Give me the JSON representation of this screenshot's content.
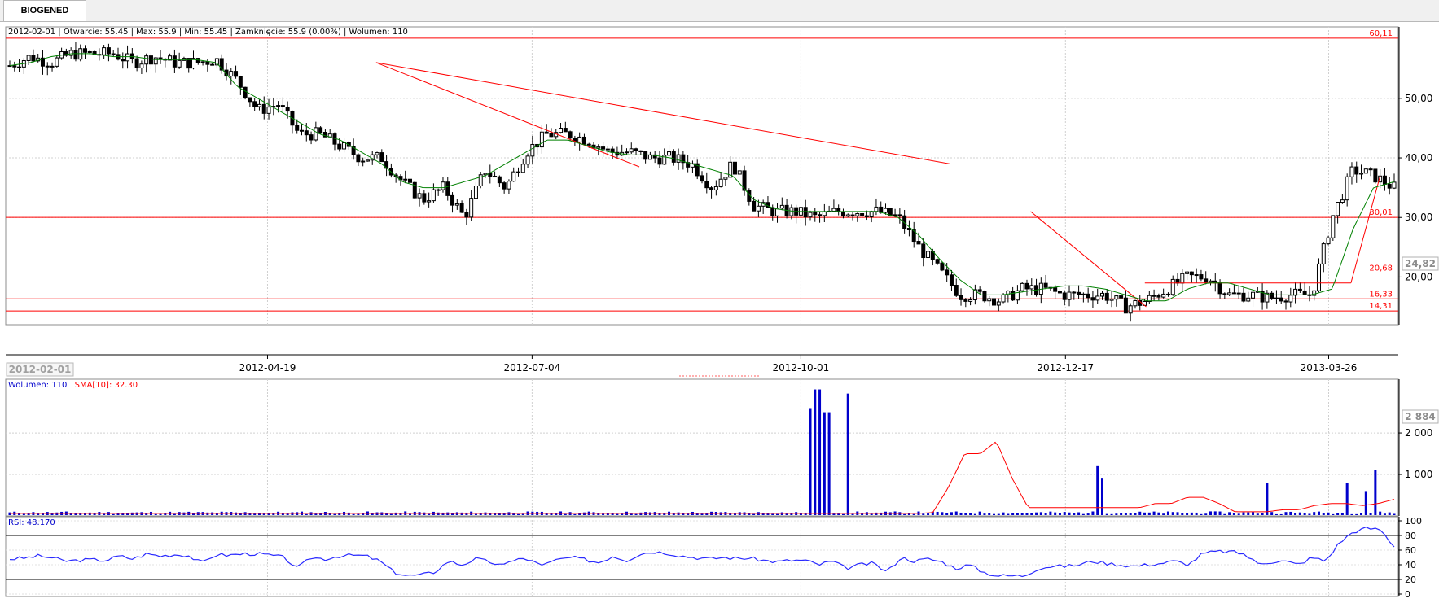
{
  "tab": {
    "label": "BIOGENED"
  },
  "price_info": "2012-02-01 | Otwarcie: 55.45 | Max: 55.9 | Min: 55.45 | Zamknięcie: 55.9 (0.00%)  | Wolumen: 110",
  "current_date": "2012-02-01",
  "volume_info": {
    "volume": "Wolumen: 110",
    "sma": "SMA[10]: 32.30"
  },
  "rsi_info": "RSI: 48.170",
  "colors": {
    "up": "#ffffff",
    "down": "#000000",
    "line": "#ff0000",
    "sma": "#008000",
    "volume": "#0000cc",
    "rsi": "#2a2aff"
  },
  "chart_data": [
    {
      "type": "candlestick",
      "x_ticks": [
        "2012-04-19",
        "2012-07-04",
        "2012-10-01",
        "2012-12-17",
        "2013-03-26"
      ],
      "y_ticks": [
        "20,00",
        "30,00",
        "40,00",
        "50,00"
      ],
      "ylim": [
        12,
        62
      ],
      "horizontal_levels": [
        {
          "value": 60.11,
          "label": "60,11"
        },
        {
          "value": 30.01,
          "label": "30,01"
        },
        {
          "value": 20.68,
          "label": "20,68"
        },
        {
          "value": 16.33,
          "label": "16,33"
        },
        {
          "value": 14.31,
          "label": "14,31"
        }
      ],
      "last_price_label": "24,82",
      "close_series_anchors": [
        55.5,
        57,
        56,
        57.5,
        57.5,
        57.5,
        56,
        57,
        56,
        56,
        56.5,
        53,
        48,
        49,
        44,
        44,
        42,
        40,
        40,
        36,
        33,
        35,
        30,
        38,
        35,
        41,
        44,
        44,
        43,
        41,
        41,
        40,
        40,
        39,
        35,
        39,
        32,
        31,
        31,
        30,
        31,
        31,
        31,
        30,
        25,
        21,
        17,
        17,
        16,
        18,
        18,
        17,
        17,
        17,
        15,
        16,
        18,
        20,
        20,
        17,
        17,
        16.5,
        17,
        17,
        30,
        38,
        37,
        35
      ],
      "sma_series_anchors": [
        55.5,
        56,
        57,
        57.5,
        57.5,
        57,
        57,
        56.5,
        56.5,
        56.5,
        56,
        52,
        50,
        48,
        46,
        44,
        43,
        41,
        39,
        36,
        35,
        35,
        36,
        37,
        39,
        41,
        43,
        43,
        42,
        41,
        40.5,
        40.5,
        40,
        39,
        38,
        37,
        33,
        31.5,
        31,
        31,
        31,
        31,
        31,
        30,
        27,
        23,
        19.5,
        17,
        17,
        17.5,
        18,
        18.5,
        18.5,
        18,
        17,
        16,
        16,
        18,
        19,
        19,
        18,
        17,
        17,
        17,
        18,
        28,
        35,
        36
      ]
    },
    {
      "type": "bar",
      "y_ticks": [
        "1 000",
        "2 000"
      ],
      "ylim": [
        0,
        3100
      ],
      "last_value_label": "2 884",
      "spikes": [
        {
          "pos": 0.578,
          "value": 2600
        },
        {
          "pos": 0.581,
          "value": 3050
        },
        {
          "pos": 0.584,
          "value": 3050
        },
        {
          "pos": 0.588,
          "value": 2500
        },
        {
          "pos": 0.591,
          "value": 2500
        },
        {
          "pos": 0.607,
          "value": 2950
        },
        {
          "pos": 0.786,
          "value": 1200
        },
        {
          "pos": 0.79,
          "value": 900
        },
        {
          "pos": 0.909,
          "value": 800
        },
        {
          "pos": 0.967,
          "value": 800
        },
        {
          "pos": 0.98,
          "value": 600
        },
        {
          "pos": 0.987,
          "value": 1100
        }
      ],
      "sma_anchors": [
        60,
        60,
        60,
        60,
        60,
        60,
        60,
        60,
        60,
        60,
        60,
        60,
        60,
        60,
        60,
        60,
        60,
        60,
        60,
        60,
        60,
        60,
        60,
        60,
        60,
        60,
        60,
        60,
        60,
        60,
        60,
        60,
        60,
        60,
        60,
        60,
        60,
        60,
        60,
        60,
        60,
        60,
        60,
        60,
        60,
        60,
        60,
        60,
        60,
        60,
        60,
        60,
        60,
        60,
        60,
        60,
        60,
        60,
        80,
        700,
        1500,
        1500,
        1800,
        900,
        200,
        200,
        200,
        200,
        200,
        200,
        200,
        200,
        300,
        300,
        450,
        450,
        300,
        100,
        100,
        100,
        150,
        150,
        250,
        300,
        300,
        250,
        300,
        400
      ]
    },
    {
      "type": "line",
      "y_ticks": [
        "0",
        "20",
        "40",
        "60",
        "80",
        "100"
      ],
      "ylim": [
        0,
        100
      ],
      "levels": [
        80,
        20
      ],
      "series_anchors": [
        48,
        49,
        52,
        50,
        45,
        46,
        47,
        46,
        52,
        48,
        55,
        52,
        54,
        53,
        42,
        54,
        53,
        55,
        55,
        53,
        50,
        35,
        50,
        48,
        52,
        53,
        52,
        45,
        30,
        25,
        26,
        30,
        45,
        40,
        48,
        44,
        38,
        50,
        45,
        40,
        47,
        50,
        47,
        43,
        52,
        46,
        55,
        58,
        56,
        52,
        50,
        48,
        50,
        49,
        49,
        46,
        44,
        46,
        46,
        40,
        45,
        35,
        40,
        42,
        30,
        50,
        45,
        48,
        44,
        35,
        40,
        30,
        25,
        25,
        25,
        35,
        38,
        38,
        40,
        45,
        42,
        40,
        38,
        40,
        42,
        45,
        40,
        55,
        58,
        58,
        55,
        42,
        44,
        45,
        40,
        50,
        45,
        70,
        85,
        90,
        88,
        65
      ]
    }
  ]
}
